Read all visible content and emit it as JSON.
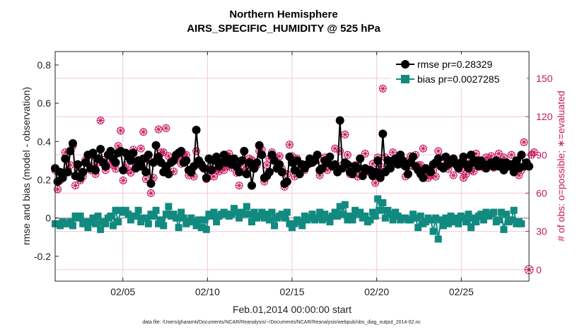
{
  "chart_data": {
    "type": "line",
    "title_line1": "Northern Hemisphere",
    "title_line2": "AIRS_SPECIFIC_HUMIDITY @ 525 hPa",
    "xlabel": "Feb.01,2014 00:00:00 start",
    "ylabel_left": "rmse and bias (model - observation)",
    "ylabel_right": "# of obs: o=possible; ∗=evaluated",
    "footer": "data file: /Users/gharamti/Documents/NCAR/Reanalysis/~/Documents/NCAR/Reanalysis/webpub/obs_diag_output_2014-02.nc",
    "x_range": [
      1,
      29
    ],
    "ylim_left": [
      -0.33,
      0.87
    ],
    "ylim_right": [
      -9,
      171
    ],
    "x_ticks": [
      5,
      10,
      15,
      20,
      25
    ],
    "x_tick_labels": [
      "02/05",
      "02/10",
      "02/15",
      "02/20",
      "02/25"
    ],
    "y_ticks_left": [
      -0.2,
      0,
      0.2,
      0.4,
      0.6,
      0.8
    ],
    "y_tick_labels_left": [
      "-0.2",
      "0",
      "0.2",
      "0.4",
      "0.6",
      "0.8"
    ],
    "y_ticks_right": [
      0,
      30,
      60,
      90,
      120,
      150
    ],
    "y_tick_labels_right": [
      "0",
      "30",
      "60",
      "90",
      "120",
      "150"
    ],
    "legend": [
      {
        "name": "rmse pr=0.28329",
        "color": "#000000",
        "marker": "circle"
      },
      {
        "name": "bias pr=0.0027285",
        "color": "#118a80",
        "marker": "square"
      }
    ],
    "colors": {
      "rmse": "#000000",
      "bias": "#118a80",
      "obs": "#c8175f",
      "zero_line": "#b8b8b8",
      "grid": "#f2c7d8"
    },
    "rmse": [
      0.26,
      0.19,
      0.24,
      0.21,
      0.31,
      0.24,
      0.35,
      0.39,
      0.22,
      0.28,
      0.21,
      0.24,
      0.29,
      0.33,
      0.26,
      0.34,
      0.25,
      0.31,
      0.36,
      0.29,
      0.27,
      0.33,
      0.35,
      0.31,
      0.29,
      0.34,
      0.35,
      0.25,
      0.34,
      0.32,
      0.3,
      0.34,
      0.26,
      0.3,
      0.27,
      0.31,
      0.24,
      0.33,
      0.18,
      0.29,
      0.38,
      0.32,
      0.29,
      0.24,
      0.27,
      0.23,
      0.29,
      0.3,
      0.33,
      0.34,
      0.35,
      0.29,
      0.3,
      0.25,
      0.24,
      0.27,
      0.46,
      0.3,
      0.28,
      0.26,
      0.21,
      0.31,
      0.25,
      0.3,
      0.32,
      0.27,
      0.29,
      0.33,
      0.29,
      0.31,
      0.28,
      0.31,
      0.27,
      0.24,
      0.3,
      0.35,
      0.23,
      0.29,
      0.17,
      0.26,
      0.29,
      0.38,
      0.33,
      0.21,
      0.22,
      0.24,
      0.33,
      0.3,
      0.26,
      0.28,
      0.24,
      0.18,
      0.19,
      0.32,
      0.29,
      0.25,
      0.3,
      0.23,
      0.28,
      0.26,
      0.28,
      0.31,
      0.29,
      0.3,
      0.33,
      0.25,
      0.26,
      0.3,
      0.29,
      0.32,
      0.27,
      0.28,
      0.24,
      0.51,
      0.26,
      0.29,
      0.28,
      0.24,
      0.23,
      0.27,
      0.26,
      0.31,
      0.22,
      0.26,
      0.25,
      0.25,
      0.22,
      0.24,
      0.3,
      0.21,
      0.44,
      0.24,
      0.3,
      0.26,
      0.3,
      0.31,
      0.28,
      0.33,
      0.3,
      0.27,
      0.23,
      0.29,
      0.32,
      0.27,
      0.25,
      0.23,
      0.21,
      0.26,
      0.25,
      0.24,
      0.28,
      0.29,
      0.31,
      0.27,
      0.26,
      0.32,
      0.28,
      0.29,
      0.31,
      0.28,
      0.26,
      0.29,
      0.32,
      0.28,
      0.26,
      0.33,
      0.29,
      0.3,
      0.27,
      0.3,
      0.28,
      0.26,
      0.28,
      0.29,
      0.27,
      0.3,
      0.27,
      0.29,
      0.25,
      0.29,
      0.27,
      0.28,
      0.24,
      0.3,
      0.26,
      0.33,
      0.27,
      0.29,
      0.27
    ],
    "bias": [
      -0.03,
      -0.03,
      -0.04,
      -0.02,
      -0.03,
      -0.03,
      -0.02,
      -0.04,
      0.01,
      0.0,
      0.01,
      -0.03,
      -0.02,
      -0.05,
      -0.02,
      0.0,
      -0.03,
      0.01,
      -0.06,
      -0.02,
      -0.03,
      0.0,
      0.01,
      -0.04,
      0.04,
      -0.02,
      0.04,
      0.03,
      0.04,
      0.02,
      -0.01,
      0.01,
      0.01,
      0.04,
      -0.02,
      0.0,
      0.0,
      -0.03,
      0.02,
      0.01,
      0.04,
      -0.03,
      -0.01,
      -0.04,
      0.02,
      0.06,
      0.01,
      0.02,
      0.0,
      -0.05,
      0.03,
      0.0,
      -0.03,
      -0.02,
      0.0,
      -0.02,
      -0.04,
      -0.01,
      -0.05,
      -0.01,
      -0.06,
      0.02,
      0.01,
      0.03,
      -0.02,
      0.01,
      0.02,
      0.03,
      0.02,
      0.01,
      0.02,
      0.05,
      0.03,
      0.0,
      0.03,
      0.02,
      0.06,
      0.02,
      -0.02,
      0.03,
      0.0,
      0.01,
      0.03,
      0.0,
      0.02,
      -0.01,
      0.03,
      -0.04,
      0.0,
      0.01,
      0.02,
      0.0,
      0.03,
      -0.03,
      -0.05,
      -0.03,
      -0.01,
      -0.02,
      -0.04,
      0.01,
      -0.01,
      0.0,
      0.02,
      -0.01,
      0.0,
      0.03,
      -0.01,
      0.02,
      0.0,
      -0.02,
      0.01,
      0.03,
      0.01,
      0.06,
      0.02,
      0.07,
      -0.01,
      0.01,
      -0.01,
      0.04,
      0.02,
      0.03,
      0.0,
      0.01,
      -0.02,
      -0.01,
      0.03,
      0.01,
      0.1,
      0.04,
      0.08,
      0.0,
      0.04,
      0.02,
      -0.01,
      0.03,
      0.01,
      -0.01,
      0.0,
      0.0,
      -0.01,
      -0.01,
      0.02,
      0.0,
      -0.05,
      0.01,
      -0.03,
      -0.02,
      0.0,
      -0.01,
      -0.07,
      0.0,
      -0.11,
      -0.01,
      -0.04,
      0.0,
      -0.03,
      0.01,
      -0.02,
      0.0,
      -0.03,
      0.01,
      0.0,
      -0.02,
      0.02,
      -0.05,
      0.0,
      -0.02,
      0.01,
      0.02,
      -0.01,
      0.03,
      0.01,
      0.02,
      0.03,
      -0.02,
      -0.01,
      0.03,
      -0.06,
      0.02,
      -0.02,
      -0.01,
      0.04,
      -0.03,
      -0.02,
      -0.03
    ],
    "obs_possible": [
      78,
      63,
      70,
      72,
      92,
      78,
      82,
      97,
      66,
      78,
      70,
      73,
      86,
      89,
      78,
      81,
      75,
      84,
      117,
      86,
      78,
      82,
      86,
      82,
      79,
      97,
      109,
      70,
      82,
      78,
      76,
      94,
      81,
      86,
      95,
      108,
      71,
      86,
      60,
      72,
      85,
      110,
      92,
      92,
      111,
      89,
      85,
      77,
      88,
      89,
      83,
      90,
      90,
      74,
      77,
      73,
      93,
      85,
      81,
      80,
      71,
      73,
      79,
      73,
      78,
      77,
      81,
      78,
      81,
      91,
      80,
      83,
      76,
      66,
      82,
      76,
      79,
      87,
      86,
      79,
      82,
      93,
      94,
      69,
      82,
      87,
      92,
      88,
      79,
      89,
      79,
      65,
      75,
      98,
      89,
      73,
      87,
      77,
      82,
      78,
      82,
      83,
      84,
      87,
      86,
      74,
      79,
      88,
      78,
      82,
      82,
      95,
      77,
      93,
      82,
      106,
      90,
      75,
      81,
      82,
      73,
      79,
      76,
      91,
      78,
      76,
      83,
      68,
      88,
      81,
      142,
      88,
      86,
      82,
      92,
      83,
      83,
      86,
      82,
      73,
      85,
      89,
      81,
      90,
      82,
      82,
      95,
      74,
      72,
      74,
      78,
      73,
      93,
      88,
      81,
      87,
      79,
      86,
      74,
      84,
      81,
      78,
      72,
      75,
      88,
      78,
      77,
      91,
      86,
      83,
      80,
      88,
      85,
      89,
      80,
      84,
      91,
      81,
      88,
      83,
      82,
      90,
      77,
      83,
      74,
      78,
      100,
      81,
      81,
      90,
      92
    ],
    "obs_evaluated": [
      78,
      63,
      70,
      72,
      92,
      78,
      82,
      97,
      66,
      78,
      70,
      73,
      86,
      89,
      78,
      81,
      75,
      84,
      117,
      86,
      78,
      82,
      86,
      82,
      79,
      97,
      109,
      70,
      82,
      78,
      76,
      94,
      81,
      86,
      95,
      108,
      71,
      86,
      60,
      72,
      85,
      110,
      92,
      92,
      111,
      89,
      85,
      77,
      88,
      89,
      83,
      90,
      90,
      74,
      77,
      73,
      93,
      85,
      81,
      80,
      71,
      73,
      79,
      73,
      78,
      77,
      81,
      78,
      81,
      91,
      80,
      83,
      76,
      66,
      82,
      76,
      79,
      87,
      86,
      79,
      82,
      93,
      94,
      69,
      82,
      87,
      92,
      88,
      79,
      89,
      79,
      65,
      75,
      98,
      89,
      73,
      87,
      77,
      82,
      78,
      82,
      83,
      84,
      87,
      86,
      74,
      79,
      88,
      78,
      82,
      82,
      95,
      77,
      93,
      82,
      106,
      90,
      75,
      81,
      82,
      73,
      79,
      76,
      91,
      78,
      76,
      83,
      68,
      88,
      81,
      142,
      88,
      86,
      82,
      92,
      83,
      83,
      86,
      82,
      73,
      85,
      89,
      81,
      90,
      82,
      82,
      95,
      74,
      72,
      74,
      78,
      73,
      93,
      88,
      81,
      87,
      79,
      86,
      74,
      84,
      81,
      78,
      72,
      75,
      88,
      78,
      77,
      91,
      86,
      83,
      80,
      88,
      85,
      89,
      80,
      84,
      91,
      81,
      88,
      83,
      82,
      90,
      77,
      83,
      74,
      78,
      100,
      81,
      81,
      90,
      92
    ],
    "obs_end_marker": 0
  }
}
